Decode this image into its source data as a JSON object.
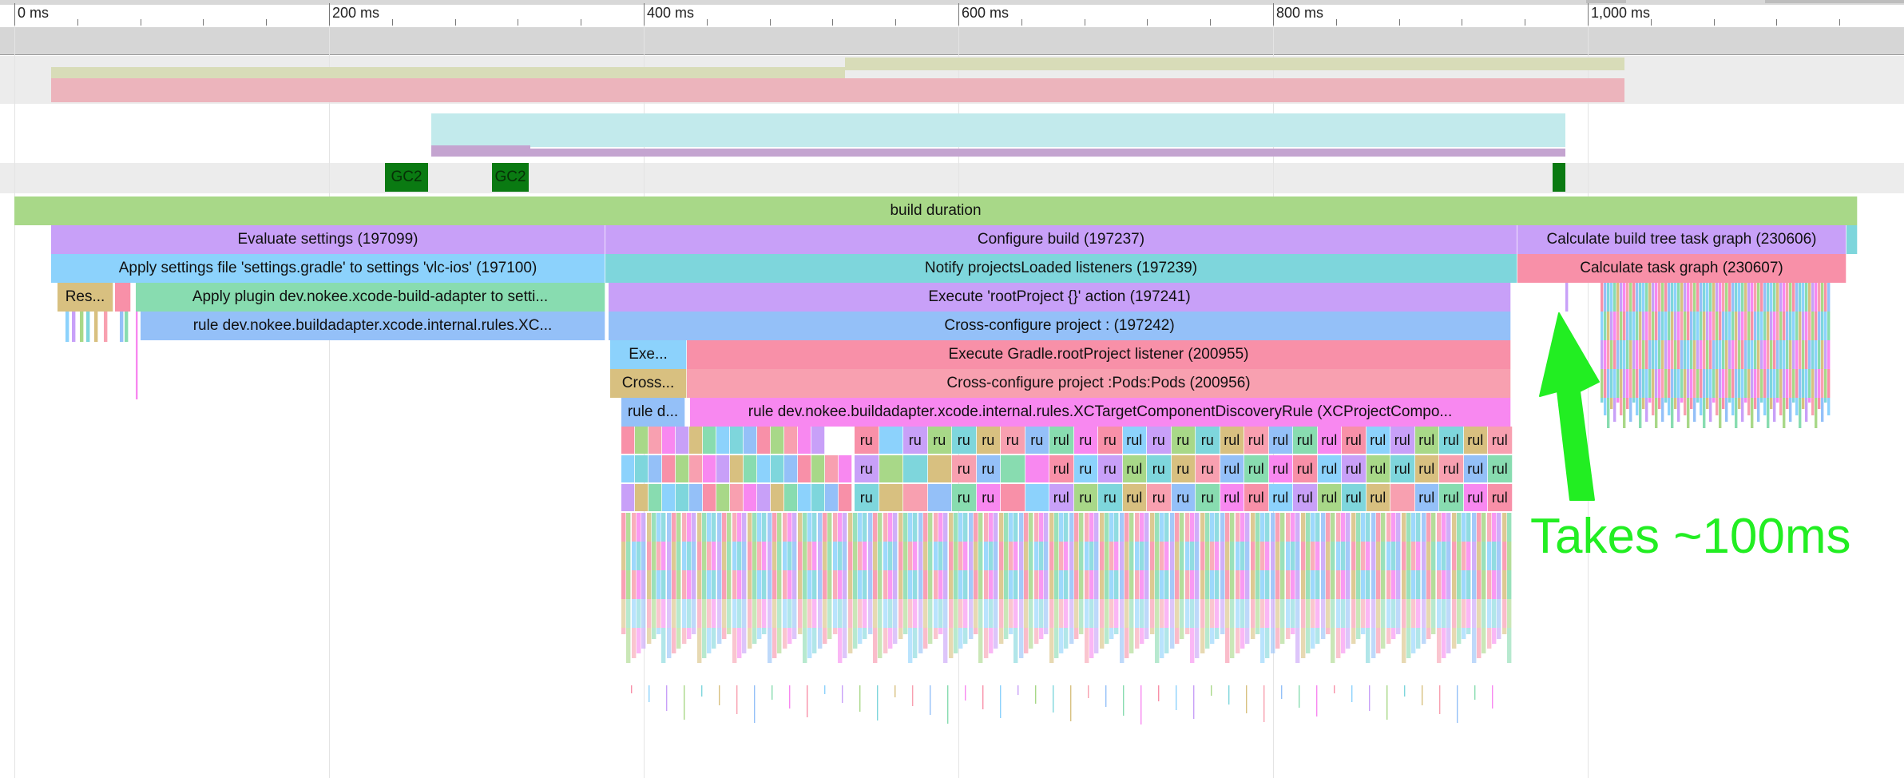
{
  "timeline": {
    "ticks": [
      "0 ms",
      "200 ms",
      "400 ms",
      "600 ms",
      "800 ms",
      "1,000 ms"
    ]
  },
  "gc_markers": [
    "GC2",
    "GC2"
  ],
  "spans": {
    "build_duration": "build duration",
    "evaluate_settings": "Evaluate settings (197099)",
    "configure_build": "Configure build (197237)",
    "calculate_build_tree": "Calculate build tree task graph (230606)",
    "apply_settings_file": "Apply settings file 'settings.gradle' to settings 'vlc-ios' (197100)",
    "notify_projects_loaded": "Notify projectsLoaded listeners (197239)",
    "calculate_task_graph": "Calculate task graph (230607)",
    "res": "Res...",
    "apply_plugin": "Apply plugin dev.nokee.xcode-build-adapter to setti...",
    "execute_root_project": "Execute 'rootProject {}' action (197241)",
    "rule_xc": "rule dev.nokee.buildadapter.xcode.internal.rules.XC...",
    "cross_configure_project": "Cross-configure project : (197242)",
    "exe": "Exe...",
    "execute_gradle_root_listener": "Execute Gradle.rootProject listener (200955)",
    "cross": "Cross...",
    "cross_configure_pods": "Cross-configure project :Pods:Pods (200956)",
    "rule_d": "rule d...",
    "rule_discovery": "rule dev.nokee.buildadapter.xcode.internal.rules.XCTargetComponentDiscoveryRule (XCProjectCompo..."
  },
  "rule_rows": [
    [
      "ru",
      "",
      "ru",
      "ru",
      "ru",
      "ru",
      "ru",
      "ru",
      "rul",
      "ru",
      "ru",
      "rul",
      "ru",
      "ru",
      "ru",
      "rul",
      "rul",
      "rul",
      "rul",
      "rul",
      "rul",
      "rul",
      "rul",
      "rul",
      "rul",
      "rul",
      "rul"
    ],
    [
      "ru",
      "",
      "",
      "",
      "ru",
      "ru",
      "",
      "",
      "rul",
      "ru",
      "ru",
      "rul",
      "ru",
      "ru",
      "ru",
      "rul",
      "rul",
      "rul",
      "rul",
      "rul",
      "rul",
      "rul",
      "rul",
      "rul",
      "rul",
      "rul",
      "rul"
    ],
    [
      "ru",
      "",
      "",
      "",
      "ru",
      "ru",
      "",
      "",
      "rul",
      "ru",
      "ru",
      "rul",
      "ru",
      "ru",
      "ru",
      "rul",
      "rul",
      "rul",
      "rul",
      "rul",
      "rul",
      "rul",
      "",
      "rul",
      "rul",
      "rul",
      "rul"
    ]
  ],
  "annotation": {
    "text": "Takes ~100ms",
    "color": "#22ee22"
  },
  "colors": {
    "purple": "#c8a0f8",
    "blue": "#8cd2fc",
    "teal": "#7ed6dc",
    "pink": "#f890a8",
    "green": "#a8d888",
    "gc": "#0a7a12"
  }
}
